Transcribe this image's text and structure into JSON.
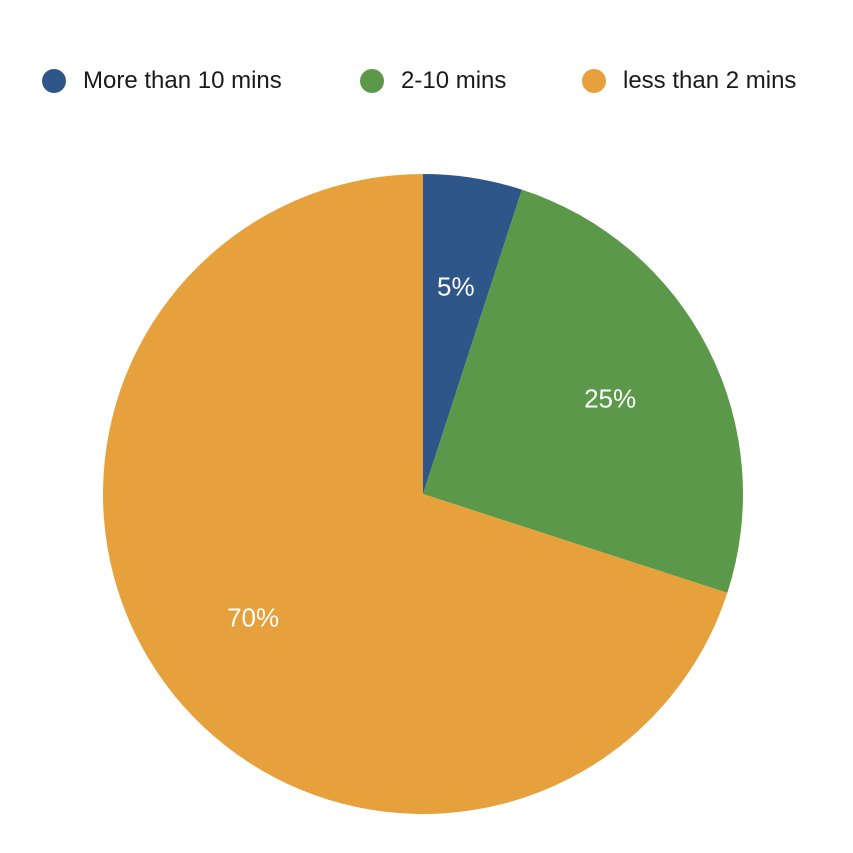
{
  "chart_data": {
    "type": "pie",
    "categories": [
      "More than 10 mins",
      "2-10 mins",
      "less than 2 mins"
    ],
    "values": [
      5,
      25,
      70
    ],
    "labels": [
      "5%",
      "25%",
      "70%"
    ],
    "colors": [
      "#2e5689",
      "#5c984a",
      "#e7a13c"
    ],
    "start_angle": "12 o'clock",
    "direction": "clockwise",
    "legend_position": "top"
  }
}
